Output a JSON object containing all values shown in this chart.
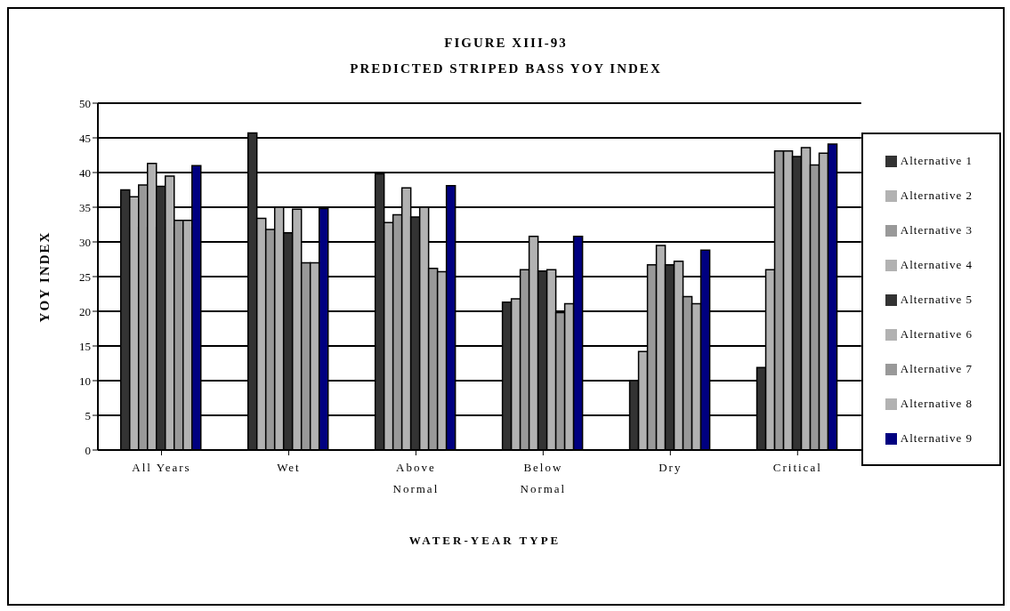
{
  "chart_data": {
    "type": "bar",
    "title": "FIGURE XIII-93",
    "subtitle": "PREDICTED STRIPED BASS YOY INDEX",
    "xlabel": "WATER-YEAR TYPE",
    "ylabel": "YOY INDEX",
    "categories": [
      "All Years",
      "Wet",
      "Above Normal",
      "Below Normal",
      "Dry",
      "Critical"
    ],
    "series": [
      {
        "name": "Alternative 1",
        "color": "#333333",
        "values": [
          37.5,
          45.7,
          39.8,
          21.3,
          10,
          11.9
        ]
      },
      {
        "name": "Alternative 2",
        "color": "#b2b2b2",
        "values": [
          36.5,
          33.4,
          32.8,
          21.8,
          14.2,
          26
        ]
      },
      {
        "name": "Alternative 3",
        "color": "#999999",
        "values": [
          38.2,
          31.8,
          33.9,
          26,
          26.7,
          43.1
        ]
      },
      {
        "name": "Alternative 4",
        "color": "#b2b2b2",
        "values": [
          41.3,
          35,
          37.8,
          30.8,
          29.5,
          43.1
        ]
      },
      {
        "name": "Alternative 5",
        "color": "#333333",
        "values": [
          38,
          31.3,
          33.6,
          25.8,
          26.7,
          42.3
        ]
      },
      {
        "name": "Alternative 6",
        "color": "#b2b2b2",
        "values": [
          39.5,
          34.7,
          35,
          26,
          27.2,
          43.6
        ]
      },
      {
        "name": "Alternative 7",
        "color": "#999999",
        "values": [
          33.1,
          27,
          26.2,
          19.8,
          22.1,
          41.1
        ]
      },
      {
        "name": "Alternative 8",
        "color": "#b2b2b2",
        "values": [
          33.1,
          27,
          25.7,
          21.1,
          21.1,
          42.8
        ]
      },
      {
        "name": "Alternative 9",
        "color": "#000080",
        "values": [
          41,
          34.8,
          38.1,
          30.8,
          28.8,
          44.1
        ]
      }
    ],
    "ylim": [
      0,
      50
    ],
    "yticks": [
      0,
      5,
      10,
      15,
      20,
      25,
      30,
      35,
      40,
      45,
      50
    ],
    "grid": "y",
    "legend": "right"
  }
}
